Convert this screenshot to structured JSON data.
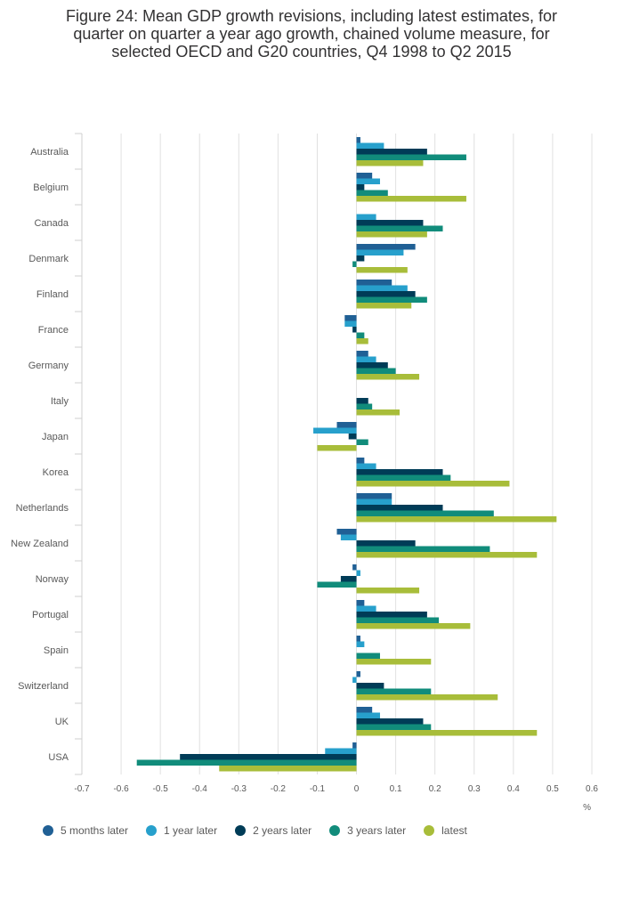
{
  "title": "Figure 24: Mean GDP growth revisions, including latest estimates, for quarter on quarter a year ago growth, chained volume measure, for selected OECD and G20 countries, Q4 1998 to Q2 2015",
  "title_lines": [
    "Figure 24: Mean GDP growth revisions, including latest estimates, for",
    "quarter on quarter a year ago growth, chained volume measure, for",
    "selected OECD and G20 countries, Q4 1998 to Q2 2015"
  ],
  "chart_data": {
    "type": "bar",
    "orientation": "horizontal",
    "title": "Figure 24: Mean GDP growth revisions, including latest estimates, for quarter on quarter a year ago growth, chained volume measure, for selected OECD and G20 countries, Q4 1998 to Q2 2015",
    "xlabel": "%",
    "ylabel": "",
    "xlim": [
      -0.7,
      0.6
    ],
    "xticks": [
      -0.7,
      -0.6,
      -0.5,
      -0.4,
      -0.3,
      -0.2,
      -0.1,
      0,
      0.1,
      0.2,
      0.3,
      0.4,
      0.5,
      0.6
    ],
    "xtick_labels": [
      "-0.7",
      "-0.6",
      "-0.5",
      "-0.4",
      "-0.3",
      "-0.2",
      "-0.1",
      "0",
      "0.1",
      "0.2",
      "0.3",
      "0.4",
      "0.5",
      "0.6"
    ],
    "grid": true,
    "legend_position": "bottom",
    "categories": [
      "Australia",
      "Belgium",
      "Canada",
      "Denmark",
      "Finland",
      "France",
      "Germany",
      "Italy",
      "Japan",
      "Korea",
      "Netherlands",
      "New Zealand",
      "Norway",
      "Portugal",
      "Spain",
      "Switzerland",
      "UK",
      "USA"
    ],
    "series": [
      {
        "name": "5 months later",
        "color": "#206095",
        "values": [
          0.01,
          0.04,
          0.0,
          0.15,
          0.09,
          -0.03,
          0.03,
          0.0,
          -0.05,
          0.02,
          0.09,
          -0.05,
          -0.01,
          0.02,
          0.01,
          0.01,
          0.04,
          -0.01
        ]
      },
      {
        "name": "1 year later",
        "color": "#27a0cc",
        "values": [
          0.07,
          0.06,
          0.05,
          0.12,
          0.13,
          -0.03,
          0.05,
          0.0,
          -0.11,
          0.05,
          0.09,
          -0.04,
          0.01,
          0.05,
          0.02,
          -0.01,
          0.06,
          -0.08
        ]
      },
      {
        "name": "2 years later",
        "color": "#003c57",
        "values": [
          0.18,
          0.02,
          0.17,
          0.02,
          0.15,
          -0.01,
          0.08,
          0.03,
          -0.02,
          0.22,
          0.22,
          0.15,
          -0.04,
          0.18,
          0.0,
          0.07,
          0.17,
          -0.45
        ]
      },
      {
        "name": "3 years later",
        "color": "#118c7b",
        "values": [
          0.28,
          0.08,
          0.22,
          -0.01,
          0.18,
          0.02,
          0.1,
          0.04,
          0.03,
          0.24,
          0.35,
          0.34,
          -0.1,
          0.21,
          0.06,
          0.19,
          0.19,
          -0.56
        ]
      },
      {
        "name": "latest",
        "color": "#a8bd3a",
        "values": [
          0.17,
          0.28,
          0.18,
          0.13,
          0.14,
          0.03,
          0.16,
          0.11,
          -0.1,
          0.39,
          0.51,
          0.46,
          0.16,
          0.29,
          0.19,
          0.36,
          0.46,
          -0.35
        ]
      }
    ]
  }
}
